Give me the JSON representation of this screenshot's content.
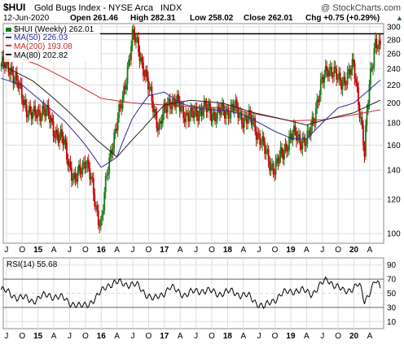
{
  "header": {
    "symbol": "$HUI",
    "name": "Gold Bugs Index - NYSE Arca",
    "exchange": "INDX",
    "watermark": "@ StockCharts.com",
    "date": "12-Jun-2020",
    "open": "Open 261.46",
    "high": "High 282.31",
    "low": "Low 258.02",
    "close": "Close 262.01",
    "change": "Chg +0.75 (+0.29%)",
    "change_arrow": "▲"
  },
  "legend": {
    "price": "$HUI (Weekly) 262.01",
    "ma50": "MA(50) 226.03",
    "ma200": "MA(200) 193.08",
    "ma80": "MA(80) 202.82"
  },
  "rsi_label": "RSI(14) 55.68",
  "colors": {
    "up": "#1a7a1a",
    "down": "#cc0000",
    "ma50": "#2a2aa0",
    "ma200": "#cc2a2a",
    "ma80": "#222222",
    "rsi": "#000000",
    "rsi_fill": "#c8a0c8",
    "grid": "#dddddd"
  },
  "chart_data": [
    {
      "type": "line",
      "title": "$HUI Gold Bugs Index - NYSE Arca INDX",
      "scale": "log",
      "ylim": [
        95,
        305
      ],
      "y_ticks": [
        100,
        120,
        140,
        160,
        180,
        200,
        220,
        240,
        260,
        280,
        300
      ],
      "x_ticks": [
        "J",
        "O",
        "15",
        "A",
        "J",
        "O",
        "16",
        "A",
        "J",
        "O",
        "17",
        "A",
        "J",
        "O",
        "18",
        "A",
        "J",
        "O",
        "19",
        "A",
        "J",
        "O",
        "20",
        "A"
      ],
      "reference_line": 289,
      "series": [
        {
          "name": "$HUI (Weekly) 262.01",
          "x": [
            "2014-06",
            "2014-08",
            "2014-10",
            "2014-12",
            "2015-02",
            "2015-04",
            "2015-06",
            "2015-08",
            "2015-10",
            "2015-12",
            "2016-01",
            "2016-03",
            "2016-05",
            "2016-07",
            "2016-08",
            "2016-10",
            "2016-12",
            "2017-02",
            "2017-04",
            "2017-06",
            "2017-08",
            "2017-10",
            "2017-12",
            "2018-02",
            "2018-04",
            "2018-06",
            "2018-08",
            "2018-10",
            "2018-12",
            "2019-02",
            "2019-04",
            "2019-06",
            "2019-08",
            "2019-10",
            "2019-12",
            "2020-01",
            "2020-03",
            "2020-04",
            "2020-05",
            "2020-06"
          ],
          "values": [
            245,
            240,
            205,
            185,
            195,
            175,
            160,
            130,
            150,
            115,
            105,
            160,
            200,
            285,
            270,
            215,
            175,
            205,
            195,
            185,
            195,
            190,
            190,
            195,
            185,
            180,
            155,
            140,
            160,
            170,
            160,
            200,
            245,
            225,
            230,
            245,
            150,
            230,
            275,
            262
          ]
        },
        {
          "name": "MA(50) 226.03",
          "x": [
            "2014-06",
            "2014-10",
            "2015-02",
            "2015-06",
            "2015-10",
            "2016-01",
            "2016-04",
            "2016-07",
            "2016-10",
            "2017-01",
            "2017-04",
            "2017-07",
            "2017-10",
            "2018-01",
            "2018-04",
            "2018-07",
            "2018-10",
            "2019-01",
            "2019-04",
            "2019-07",
            "2019-10",
            "2020-01",
            "2020-04",
            "2020-06"
          ],
          "values": [
            228,
            220,
            200,
            182,
            160,
            142,
            150,
            185,
            208,
            212,
            200,
            195,
            193,
            192,
            188,
            180,
            172,
            166,
            165,
            180,
            195,
            200,
            215,
            226
          ]
        },
        {
          "name": "MA(200) 193.08",
          "x": [
            "2014-06",
            "2015-01",
            "2015-07",
            "2016-01",
            "2016-07",
            "2017-01",
            "2017-07",
            "2018-01",
            "2018-07",
            "2019-01",
            "2019-07",
            "2020-01",
            "2020-06"
          ],
          "values": [
            262,
            245,
            225,
            205,
            200,
            198,
            196,
            195,
            188,
            182,
            183,
            188,
            193
          ]
        },
        {
          "name": "MA(80) 202.82",
          "x": [
            "2014-06",
            "2014-12",
            "2015-06",
            "2015-12",
            "2016-04",
            "2016-09",
            "2017-01",
            "2017-06",
            "2017-12",
            "2018-06",
            "2018-12",
            "2019-04",
            "2019-09",
            "2020-01",
            "2020-06"
          ],
          "values": [
            245,
            225,
            195,
            165,
            150,
            175,
            198,
            203,
            200,
            190,
            183,
            178,
            185,
            190,
            203
          ]
        }
      ]
    },
    {
      "type": "line",
      "title": "RSI(14) 55.68",
      "ylim": [
        0,
        100
      ],
      "y_ticks": [
        10,
        30,
        50,
        70,
        90
      ],
      "x_ticks": [
        "J",
        "O",
        "15",
        "A",
        "J",
        "O",
        "16",
        "A",
        "J",
        "O",
        "17",
        "A",
        "J",
        "O",
        "18",
        "A",
        "J",
        "O",
        "19",
        "A",
        "J",
        "O",
        "20",
        "A"
      ],
      "series": [
        {
          "name": "RSI(14) 55.68",
          "x": [
            "2014-06",
            "2014-09",
            "2014-12",
            "2015-03",
            "2015-06",
            "2015-09",
            "2015-12",
            "2016-02",
            "2016-05",
            "2016-08",
            "2016-11",
            "2017-02",
            "2017-05",
            "2017-08",
            "2017-11",
            "2018-02",
            "2018-05",
            "2018-08",
            "2018-11",
            "2019-02",
            "2019-05",
            "2019-08",
            "2019-11",
            "2020-02",
            "2020-03",
            "2020-05",
            "2020-06"
          ],
          "values": [
            55,
            45,
            40,
            48,
            42,
            30,
            42,
            62,
            65,
            60,
            40,
            58,
            48,
            55,
            50,
            52,
            45,
            30,
            48,
            55,
            50,
            70,
            52,
            62,
            38,
            68,
            56
          ]
        }
      ]
    }
  ]
}
